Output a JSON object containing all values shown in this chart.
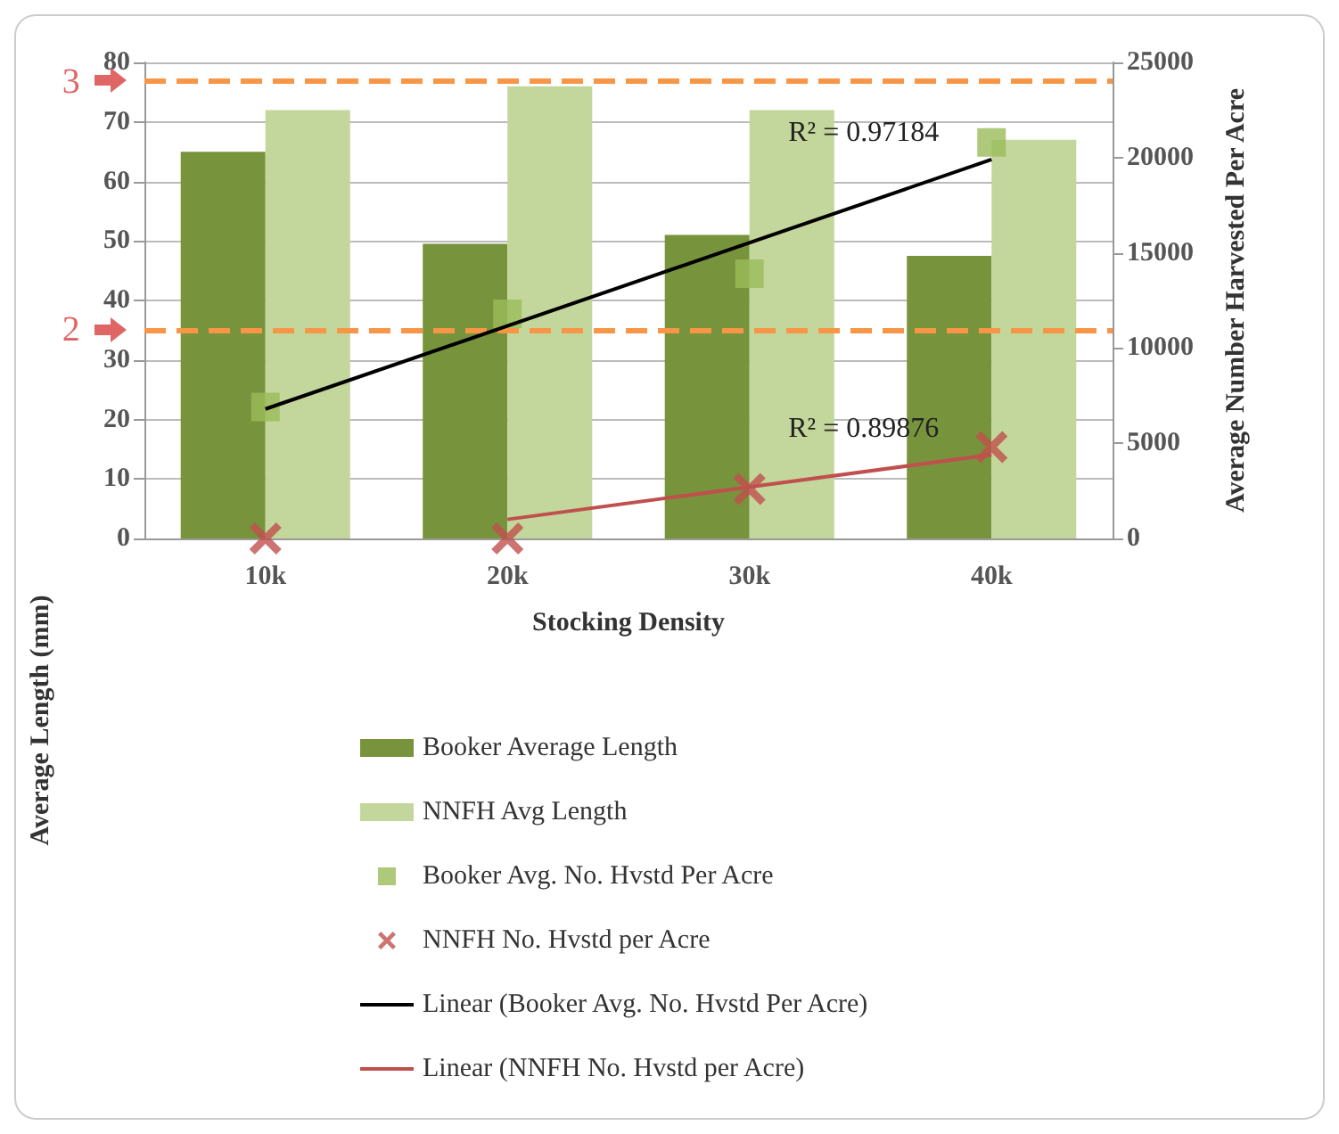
{
  "chart_data": {
    "type": "bar",
    "xlabel": "Stocking Density",
    "ylabel": "Average Length (mm)",
    "y2label": "Average Number Harvested Per Acre",
    "categories": [
      "10k",
      "20k",
      "30k",
      "40k"
    ],
    "series": [
      {
        "name": "Booker Average Length",
        "color": "#77933c",
        "values": [
          65,
          49.5,
          51,
          47.5
        ]
      },
      {
        "name": "NNFH Avg Length",
        "color": "#c3d69b",
        "values": [
          72,
          76,
          72,
          67
        ]
      },
      {
        "name": "Booker Avg. No. Hvstd Per Acre",
        "type": "scatter",
        "axis": "y2",
        "marker": "square",
        "color": "#9bbb59",
        "x": [
          "10k",
          "20k",
          "30k",
          "40k"
        ],
        "values": [
          6900,
          11800,
          13900,
          20800
        ]
      },
      {
        "name": "NNFH No. Hvstd per Acre",
        "type": "scatter",
        "axis": "y2",
        "marker": "cross",
        "color": "#c0504d",
        "x": [
          "10k",
          "20k",
          "30k",
          "40k"
        ],
        "values": [
          0,
          0,
          2600,
          4800
        ]
      },
      {
        "name": "Linear (Booker Avg. No. Hvstd Per Acre)",
        "type": "line",
        "axis": "y2",
        "marker": "none",
        "line_style": "solid",
        "color": "#000000",
        "x": [
          "10k",
          "40k"
        ],
        "values": [
          6800,
          19900
        ]
      },
      {
        "name": "Linear (NNFH No. Hvstd per Acre)",
        "type": "line",
        "axis": "y2",
        "marker": "none",
        "line_style": "solid",
        "color": "#c0504d",
        "x": [
          "20k",
          "30k",
          "40k"
        ],
        "values": [
          1000,
          2700,
          4400
        ]
      }
    ],
    "ylim": [
      0,
      80
    ],
    "yticks": [
      0,
      10,
      20,
      30,
      40,
      50,
      60,
      70,
      80
    ],
    "y2lim": [
      0,
      25000
    ],
    "y2ticks": [
      0,
      5000,
      10000,
      15000,
      20000,
      25000
    ],
    "ref_lines": [
      {
        "axis": "y",
        "value": 77,
        "color": "#f79646",
        "line_style": "dashed"
      },
      {
        "axis": "y",
        "value": 35,
        "color": "#f79646",
        "line_style": "dashed"
      }
    ],
    "annotations": [
      "R² = 0.97184",
      "R² = 0.89876",
      "3",
      "2"
    ],
    "grid": "y",
    "legend": "bottom"
  }
}
